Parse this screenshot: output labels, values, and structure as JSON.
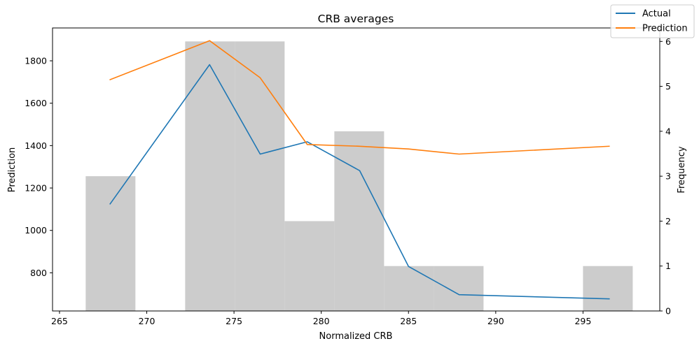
{
  "chart_data": {
    "type": "line",
    "title": "CRB averages",
    "xlabel": "Normalized CRB",
    "ylabel": "Prediction",
    "y2label": "Frequency",
    "xlim": [
      264.6,
      299.4
    ],
    "ylim": [
      620,
      1955
    ],
    "y2lim": [
      0,
      6.3
    ],
    "x_ticks": [
      265,
      270,
      275,
      280,
      285,
      290,
      295
    ],
    "y_ticks": [
      800,
      1000,
      1200,
      1400,
      1600,
      1800
    ],
    "y2_ticks": [
      0,
      1,
      2,
      3,
      4,
      5,
      6
    ],
    "grid": false,
    "legend_position": "top-right",
    "histogram": {
      "axis": "right",
      "color": "#cccccc",
      "bins": [
        {
          "x0": 266.5,
          "x1": 269.35,
          "count": 3
        },
        {
          "x0": 269.35,
          "x1": 272.2,
          "count": 0
        },
        {
          "x0": 272.2,
          "x1": 275.05,
          "count": 6
        },
        {
          "x0": 275.05,
          "x1": 277.9,
          "count": 6
        },
        {
          "x0": 277.9,
          "x1": 280.75,
          "count": 2
        },
        {
          "x0": 280.75,
          "x1": 283.6,
          "count": 4
        },
        {
          "x0": 283.6,
          "x1": 286.45,
          "count": 1
        },
        {
          "x0": 286.45,
          "x1": 289.3,
          "count": 1
        },
        {
          "x0": 289.3,
          "x1": 292.15,
          "count": 0
        },
        {
          "x0": 292.15,
          "x1": 295.0,
          "count": 0
        },
        {
          "x0": 295.0,
          "x1": 297.85,
          "count": 1
        }
      ]
    },
    "series": [
      {
        "name": "Actual",
        "color": "#1f77b4",
        "x": [
          267.9,
          273.6,
          276.5,
          279.2,
          282.2,
          285.0,
          287.9,
          296.5
        ],
        "y": [
          1125,
          1782,
          1360,
          1418,
          1282,
          830,
          697,
          677
        ]
      },
      {
        "name": "Prediction",
        "color": "#ff7f0e",
        "x": [
          267.9,
          273.6,
          276.5,
          279.2,
          282.2,
          285.0,
          287.9,
          296.5
        ],
        "y": [
          1711,
          1895,
          1720,
          1405,
          1397,
          1384,
          1360,
          1397
        ]
      }
    ]
  }
}
